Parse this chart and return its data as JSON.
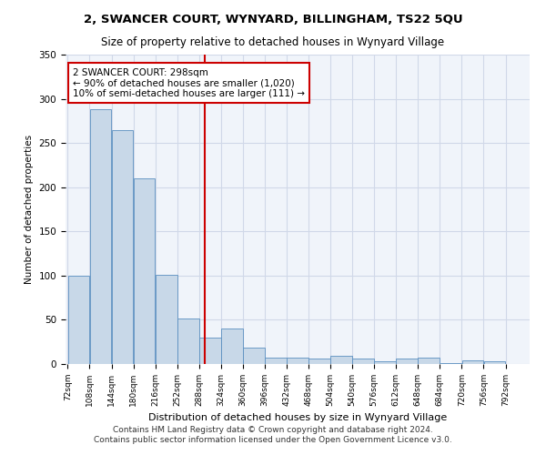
{
  "title1": "2, SWANCER COURT, WYNYARD, BILLINGHAM, TS22 5QU",
  "title2": "Size of property relative to detached houses in Wynyard Village",
  "xlabel": "Distribution of detached houses by size in Wynyard Village",
  "ylabel": "Number of detached properties",
  "footer1": "Contains HM Land Registry data © Crown copyright and database right 2024.",
  "footer2": "Contains public sector information licensed under the Open Government Licence v3.0.",
  "bin_labels": [
    "72sqm",
    "108sqm",
    "144sqm",
    "180sqm",
    "216sqm",
    "252sqm",
    "288sqm",
    "324sqm",
    "360sqm",
    "396sqm",
    "432sqm",
    "468sqm",
    "504sqm",
    "540sqm",
    "576sqm",
    "612sqm",
    "648sqm",
    "684sqm",
    "720sqm",
    "756sqm",
    "792sqm"
  ],
  "bar_values": [
    100,
    288,
    265,
    210,
    101,
    51,
    30,
    40,
    19,
    7,
    7,
    6,
    9,
    6,
    3,
    6,
    7,
    1,
    4,
    3
  ],
  "bin_edges": [
    72,
    108,
    144,
    180,
    216,
    252,
    288,
    324,
    360,
    396,
    432,
    468,
    504,
    540,
    576,
    612,
    648,
    684,
    720,
    756,
    792
  ],
  "property_value": 298,
  "bar_color": "#c8d8e8",
  "bar_edge_color": "#5a8fc0",
  "vline_color": "#cc0000",
  "annotation_box_color": "#cc0000",
  "annotation_text": "2 SWANCER COURT: 298sqm\n← 90% of detached houses are smaller (1,020)\n10% of semi-detached houses are larger (111) →",
  "ylim": [
    0,
    350
  ],
  "yticks": [
    0,
    50,
    100,
    150,
    200,
    250,
    300,
    350
  ],
  "grid_color": "#d0d8e8",
  "background_color": "#f0f4fa"
}
